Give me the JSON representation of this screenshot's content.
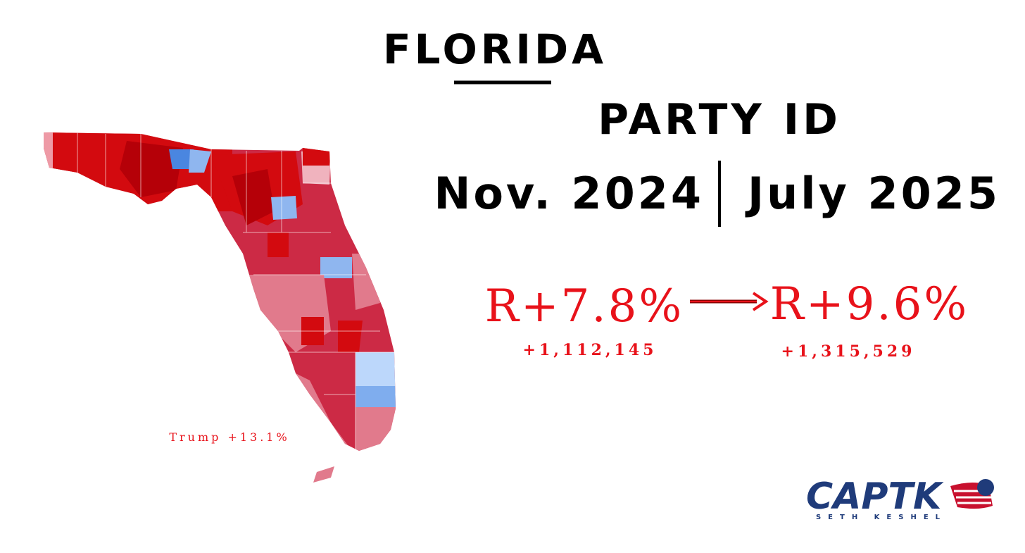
{
  "header": {
    "title": "FLORIDA",
    "subtitle": "PARTY ID",
    "period_from": "Nov. 2024",
    "period_to": "July 2025"
  },
  "comparison": {
    "before": {
      "margin": "R+7.8%",
      "count": "+1,112,145"
    },
    "after": {
      "margin": "R+9.6%",
      "count": "+1,315,529"
    }
  },
  "map": {
    "label": "Trump +13.1%"
  },
  "logo": {
    "brand": "CAPTK",
    "byline": "SETH KESHEL"
  }
}
